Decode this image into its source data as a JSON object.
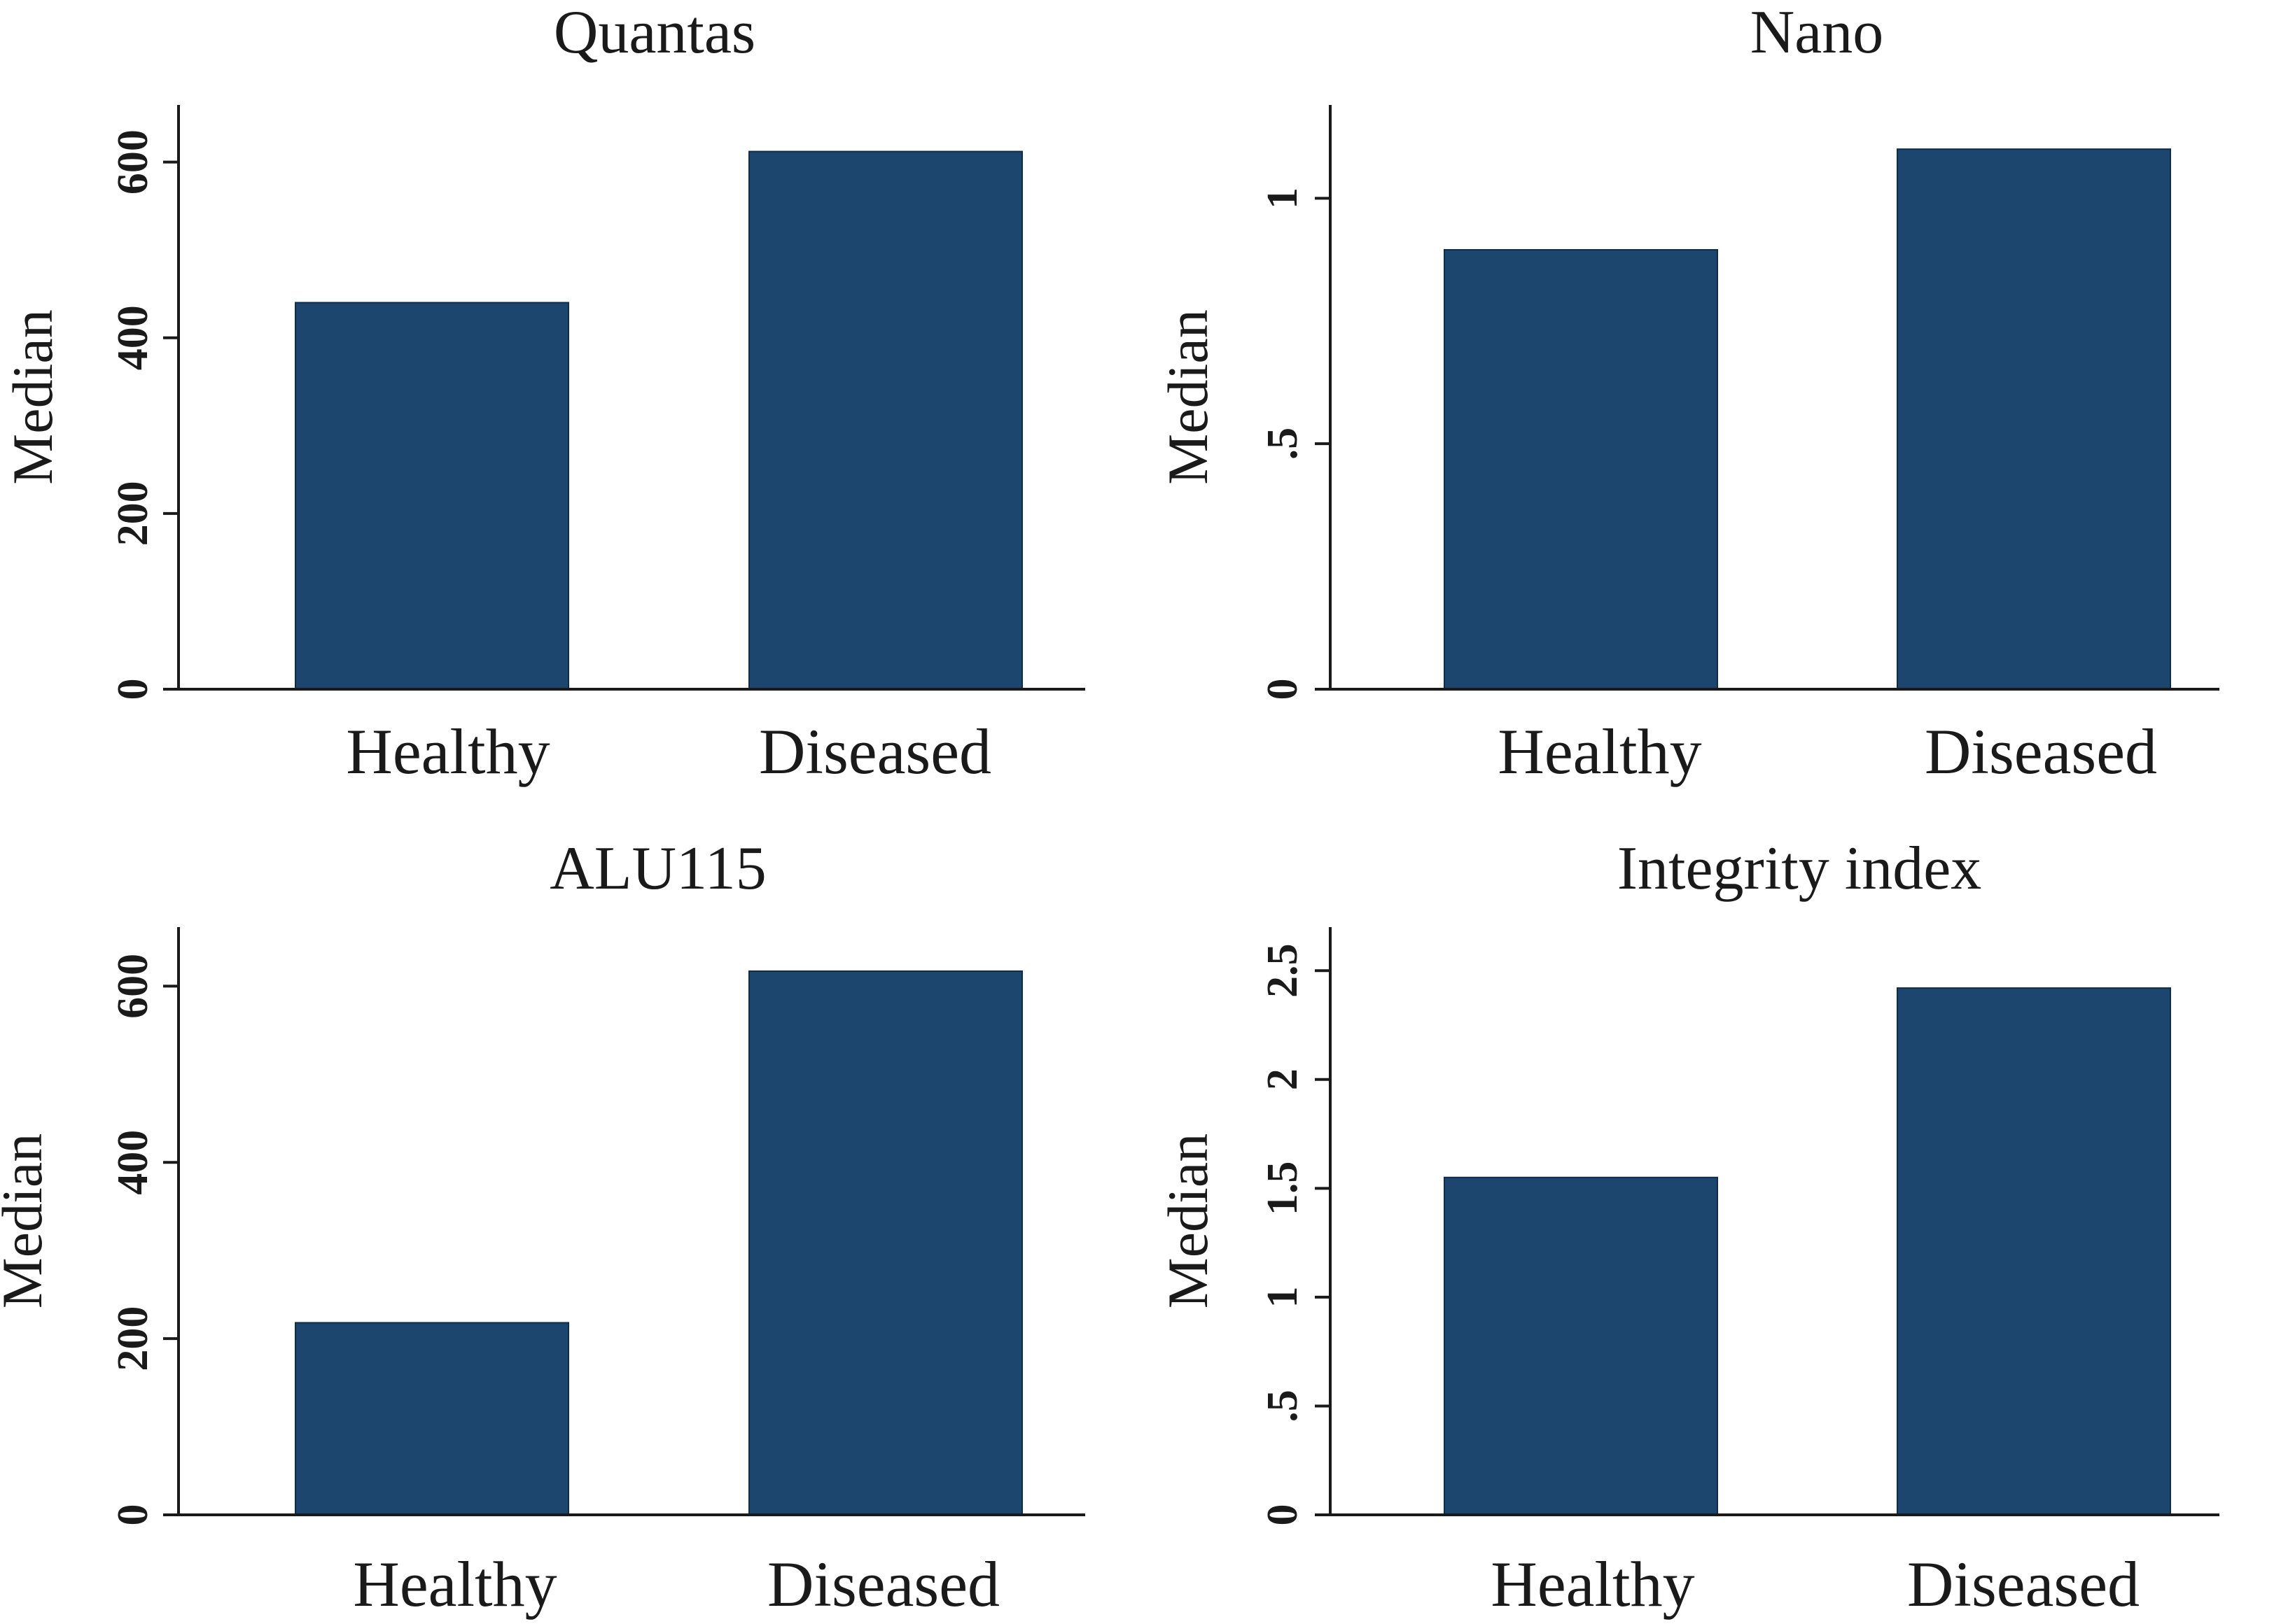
{
  "colors": {
    "bar": "#1d466f",
    "axis": "#1a1a1a"
  },
  "chart_data": [
    {
      "type": "bar",
      "title": "Quantas",
      "ylabel": "Median",
      "xlabel": "",
      "categories": [
        "Healthy",
        "Diseased"
      ],
      "values": [
        440,
        612
      ],
      "ylim": [
        0,
        665
      ],
      "yticks": [
        0,
        200,
        400,
        600
      ],
      "ytick_labels": [
        "0",
        "200",
        "400",
        "600"
      ]
    },
    {
      "type": "bar",
      "title": "Nano",
      "ylabel": "Median",
      "xlabel": "",
      "categories": [
        "Healthy",
        "Diseased"
      ],
      "values": [
        0.895,
        1.1
      ],
      "ylim": [
        0,
        1.19
      ],
      "yticks": [
        0,
        0.5,
        1
      ],
      "ytick_labels": [
        "0",
        ".5",
        "1"
      ]
    },
    {
      "type": "bar",
      "title": "ALU115",
      "ylabel": "Median",
      "xlabel": "",
      "categories": [
        "Healthy",
        "Diseased"
      ],
      "values": [
        218,
        617
      ],
      "ylim": [
        0,
        667
      ],
      "yticks": [
        0,
        200,
        400,
        600
      ],
      "ytick_labels": [
        "0",
        "200",
        "400",
        "600"
      ]
    },
    {
      "type": "bar",
      "title": "Integrity index",
      "ylabel": "Median",
      "xlabel": "",
      "categories": [
        "Healthy",
        "Diseased"
      ],
      "values": [
        1.55,
        2.42
      ],
      "ylim": [
        0,
        2.7
      ],
      "yticks": [
        0,
        0.5,
        1,
        1.5,
        2,
        2.5
      ],
      "ytick_labels": [
        "0",
        ".5",
        "1",
        "1.5",
        "2",
        "2.5"
      ]
    }
  ]
}
